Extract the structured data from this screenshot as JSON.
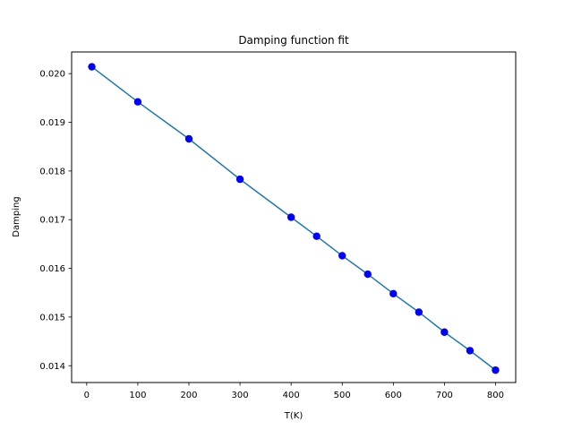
{
  "chart_data": {
    "type": "line",
    "title": "Damping function fit",
    "xlabel": "T(K)",
    "ylabel": "Damping",
    "xlim": [
      -29.5,
      839.5
    ],
    "ylim": [
      0.013655,
      0.020445
    ],
    "x_ticks": [
      0,
      100,
      200,
      300,
      400,
      500,
      600,
      700,
      800
    ],
    "x_tick_labels": [
      "0",
      "100",
      "200",
      "300",
      "400",
      "500",
      "600",
      "700",
      "800"
    ],
    "y_ticks": [
      0.014,
      0.015,
      0.016,
      0.017,
      0.018,
      0.019,
      0.02
    ],
    "y_tick_labels": [
      "0.014",
      "0.015",
      "0.016",
      "0.017",
      "0.018",
      "0.019",
      "0.020"
    ],
    "grid": false,
    "series": [
      {
        "kind": "markers",
        "color": "#0000ff",
        "x": [
          10,
          100,
          200,
          300,
          400,
          450,
          500,
          550,
          600,
          650,
          700,
          750,
          800
        ],
        "y": [
          0.02014,
          0.01942,
          0.01866,
          0.01783,
          0.01705,
          0.01666,
          0.01626,
          0.01588,
          0.01548,
          0.0151,
          0.01469,
          0.01431,
          0.01391
        ]
      },
      {
        "kind": "line",
        "color": "#1f77b4",
        "x": [
          10,
          100,
          200,
          300,
          400,
          450,
          500,
          550,
          600,
          650,
          700,
          750,
          800
        ],
        "y": [
          0.02014,
          0.01942,
          0.01866,
          0.01783,
          0.01705,
          0.01666,
          0.01626,
          0.01588,
          0.01548,
          0.0151,
          0.01469,
          0.01431,
          0.01391
        ]
      }
    ]
  }
}
